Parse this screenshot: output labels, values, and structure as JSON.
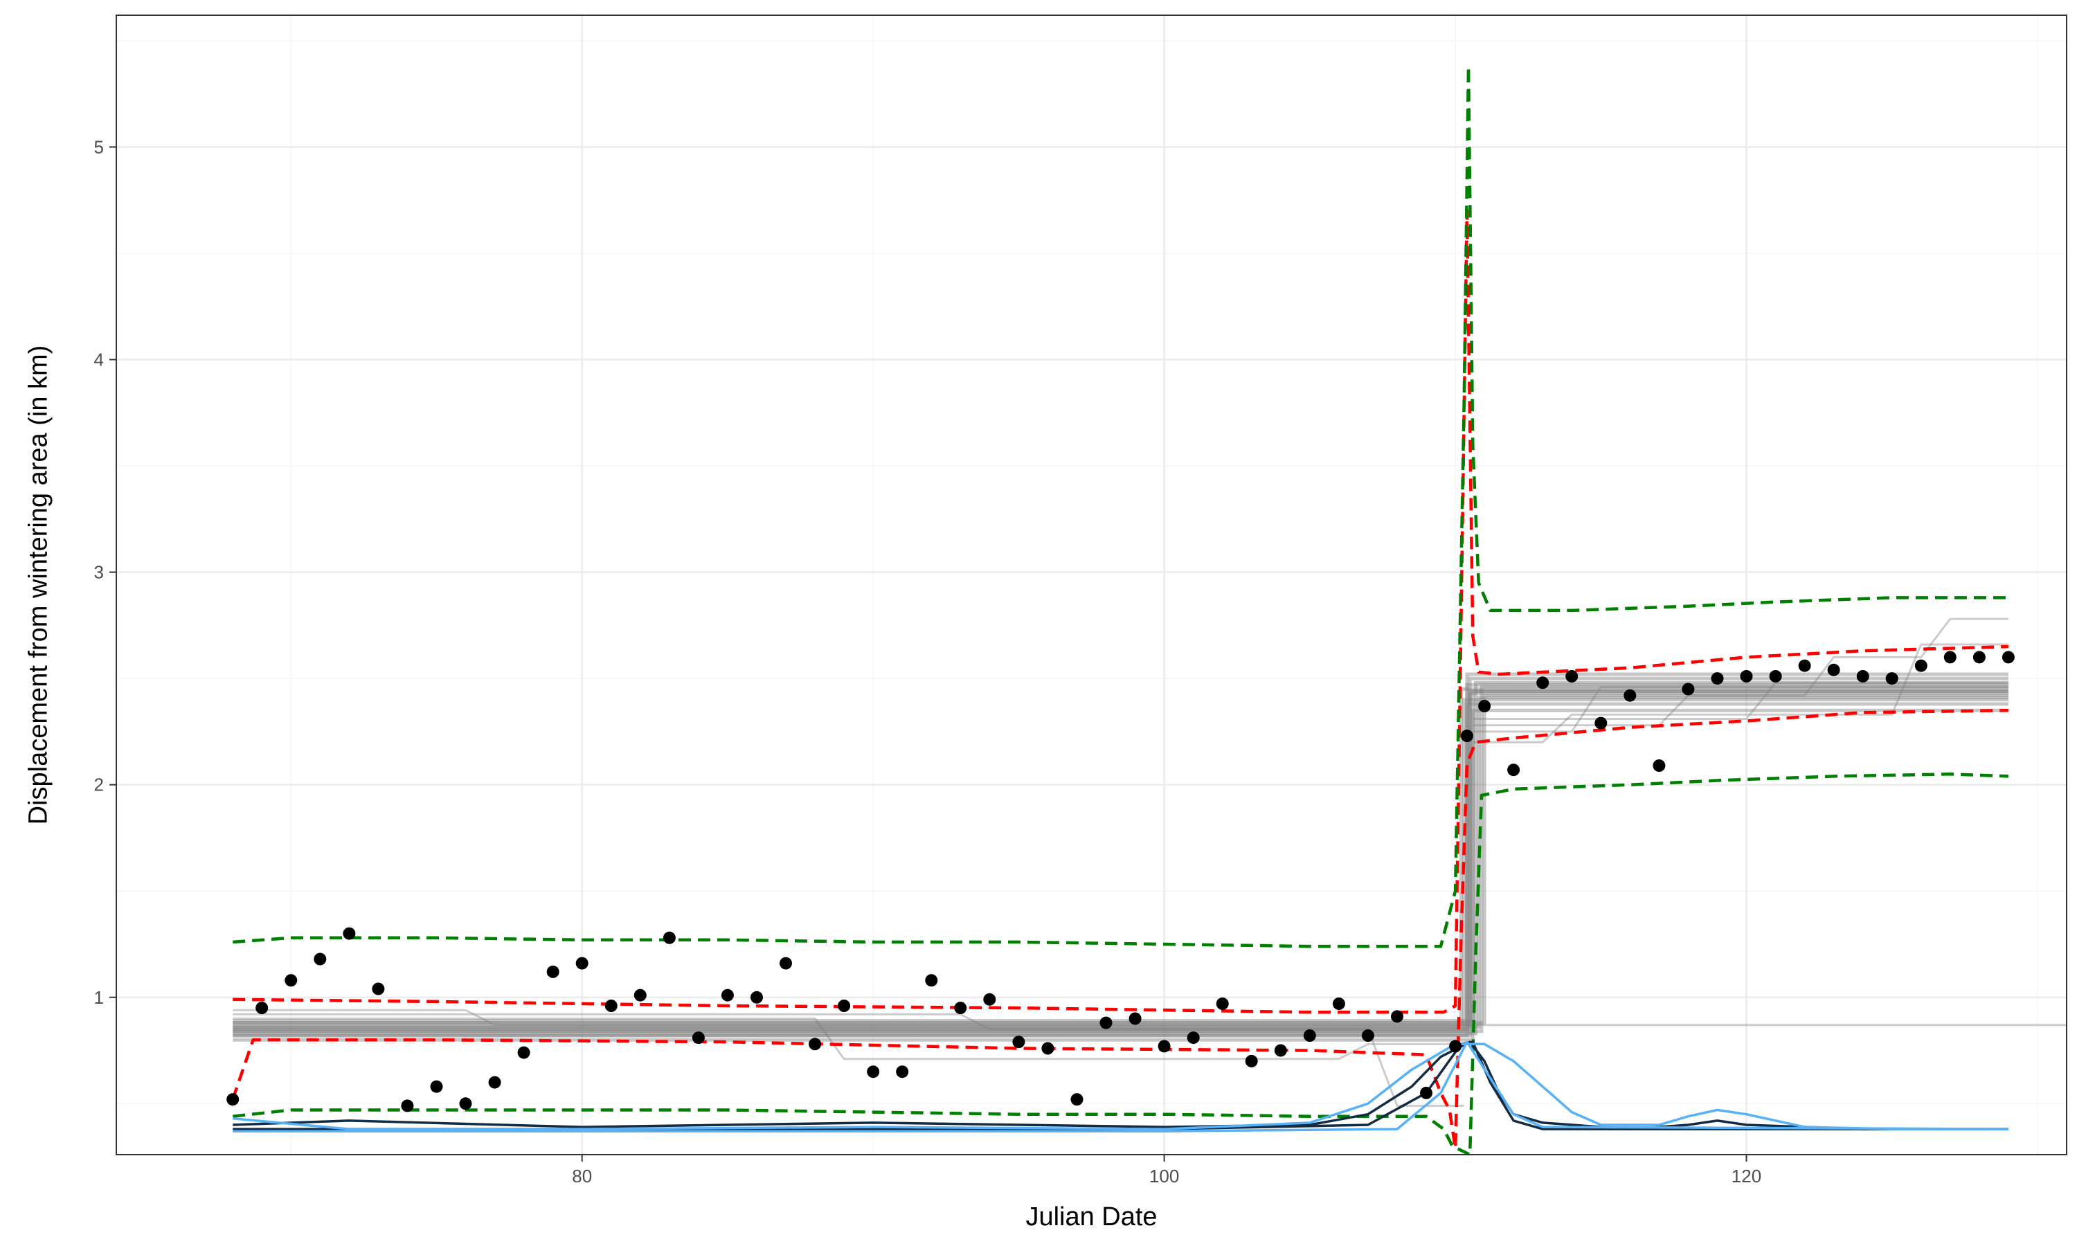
{
  "chart_data": {
    "type": "scatter",
    "title": "",
    "xlabel": "Julian Date",
    "ylabel": "Displacement from wintering area (in km)",
    "xlim": [
      64,
      131
    ],
    "ylim": [
      0.26,
      5.62
    ],
    "x_ticks": [
      80,
      100,
      120
    ],
    "y_ticks": [
      1,
      2,
      3,
      4,
      5
    ],
    "grid": true,
    "legend": "none",
    "colors": {
      "points": "#000000",
      "posterior_draws": "#808080",
      "inner_band": "#ff0000",
      "outer_band": "#008000",
      "density_dark": "#132b43",
      "density_light": "#56b1f7",
      "grid_major": "#ebebeb",
      "grid_minor": "#f5f5f5",
      "panel_border": "#333333"
    },
    "points": {
      "x": [
        68,
        69,
        70,
        71,
        72,
        73,
        74,
        75,
        76,
        77,
        78,
        79,
        80,
        81,
        82,
        83,
        84,
        85,
        86,
        87,
        88,
        89,
        90,
        91,
        92,
        93,
        94,
        95,
        96,
        97,
        98,
        99,
        100,
        101,
        102,
        103,
        104,
        105,
        106,
        107,
        108,
        109,
        110,
        110.4,
        111,
        112,
        113,
        114,
        115,
        116,
        117,
        118,
        119,
        120,
        121,
        122,
        123,
        124,
        125,
        126,
        127,
        128,
        129
      ],
      "y": [
        0.52,
        0.95,
        1.08,
        1.18,
        1.3,
        1.04,
        0.49,
        0.58,
        0.5,
        0.6,
        0.74,
        1.12,
        1.16,
        0.96,
        1.01,
        1.28,
        0.81,
        1.01,
        1.0,
        1.16,
        0.78,
        0.96,
        0.65,
        0.65,
        1.08,
        0.95,
        0.99,
        0.79,
        0.76,
        0.52,
        0.88,
        0.9,
        0.77,
        0.81,
        0.97,
        0.7,
        0.75,
        0.82,
        0.97,
        0.82,
        0.91,
        0.55,
        0.77,
        2.23,
        2.37,
        2.07,
        2.48,
        2.51,
        2.29,
        2.42,
        2.09,
        2.45,
        2.5,
        2.51,
        2.51,
        2.56,
        2.54,
        2.51,
        2.5,
        2.56,
        2.6,
        2.6,
        2.6
      ]
    },
    "step_draws": [
      {
        "pre": 0.86,
        "post": 2.45,
        "change": 110.2
      },
      {
        "pre": 0.84,
        "post": 2.4,
        "change": 110.3
      },
      {
        "pre": 0.88,
        "post": 2.47,
        "change": 110.4
      },
      {
        "pre": 0.82,
        "post": 2.38,
        "change": 110.4
      },
      {
        "pre": 0.85,
        "post": 2.43,
        "change": 110.5
      },
      {
        "pre": 0.87,
        "post": 2.5,
        "change": 110.5
      },
      {
        "pre": 0.8,
        "post": 2.35,
        "change": 110.6
      },
      {
        "pre": 0.89,
        "post": 2.44,
        "change": 110.6
      },
      {
        "pre": 0.83,
        "post": 2.48,
        "change": 110.7
      },
      {
        "pre": 0.86,
        "post": 2.41,
        "change": 110.8
      },
      {
        "pre": 0.84,
        "post": 2.46,
        "change": 110.9
      },
      {
        "pre": 0.88,
        "post": 2.42,
        "change": 111.0
      },
      {
        "pre": 0.85,
        "post": 2.52,
        "change": 110.4
      },
      {
        "pre": 0.82,
        "post": 2.44,
        "change": 110.5
      }
    ],
    "stray_draws": [
      {
        "points": [
          [
            68,
            0.94
          ],
          [
            76,
            0.94
          ],
          [
            77,
            0.87
          ],
          [
            131,
            0.87
          ]
        ]
      },
      {
        "points": [
          [
            68,
            0.9
          ],
          [
            88,
            0.9
          ],
          [
            89,
            0.71
          ],
          [
            106,
            0.71
          ],
          [
            107,
            0.78
          ],
          [
            110.3,
            0.78
          ]
        ]
      },
      {
        "points": [
          [
            68,
            0.92
          ],
          [
            93,
            0.92
          ],
          [
            94,
            0.85
          ],
          [
            107,
            0.85
          ],
          [
            108,
            0.49
          ],
          [
            110.3,
            0.49
          ]
        ]
      },
      {
        "points": [
          [
            110.6,
            2.2
          ],
          [
            113,
            2.2
          ],
          [
            114,
            2.33
          ],
          [
            125,
            2.33
          ],
          [
            126,
            2.66
          ],
          [
            129,
            2.66
          ]
        ]
      },
      {
        "points": [
          [
            110.6,
            2.28
          ],
          [
            117,
            2.28
          ],
          [
            118,
            2.42
          ],
          [
            122,
            2.42
          ],
          [
            123,
            2.6
          ],
          [
            126,
            2.6
          ],
          [
            127,
            2.78
          ],
          [
            129,
            2.78
          ]
        ]
      },
      {
        "points": [
          [
            110.6,
            2.31
          ],
          [
            120,
            2.31
          ],
          [
            121,
            2.48
          ],
          [
            129,
            2.48
          ]
        ]
      },
      {
        "points": [
          [
            110.6,
            2.25
          ],
          [
            114,
            2.25
          ],
          [
            115,
            2.46
          ],
          [
            129,
            2.46
          ]
        ]
      }
    ],
    "red_upper": [
      [
        68,
        0.99
      ],
      [
        75,
        0.98
      ],
      [
        85,
        0.96
      ],
      [
        95,
        0.95
      ],
      [
        105,
        0.93
      ],
      [
        109.6,
        0.93
      ],
      [
        110.0,
        0.96
      ],
      [
        110.2,
        2.8
      ],
      [
        110.4,
        4.7
      ],
      [
        110.6,
        2.7
      ],
      [
        110.8,
        2.53
      ],
      [
        111.5,
        2.52
      ],
      [
        113,
        2.53
      ],
      [
        116,
        2.55
      ],
      [
        120,
        2.6
      ],
      [
        124,
        2.63
      ],
      [
        129,
        2.65
      ]
    ],
    "red_lower": [
      [
        68,
        0.52
      ],
      [
        68.7,
        0.8
      ],
      [
        75,
        0.8
      ],
      [
        85,
        0.79
      ],
      [
        95,
        0.76
      ],
      [
        105,
        0.75
      ],
      [
        109,
        0.73
      ],
      [
        109.5,
        0.55
      ],
      [
        109.8,
        0.47
      ],
      [
        110.0,
        0.29
      ],
      [
        110.2,
        1.3
      ],
      [
        110.4,
        2.1
      ],
      [
        110.7,
        2.2
      ],
      [
        112,
        2.22
      ],
      [
        116,
        2.27
      ],
      [
        120,
        2.3
      ],
      [
        124,
        2.34
      ],
      [
        129,
        2.35
      ]
    ],
    "green_upper": [
      [
        68,
        1.26
      ],
      [
        70,
        1.28
      ],
      [
        75,
        1.28
      ],
      [
        80,
        1.27
      ],
      [
        85,
        1.27
      ],
      [
        90,
        1.26
      ],
      [
        95,
        1.26
      ],
      [
        100,
        1.25
      ],
      [
        105,
        1.24
      ],
      [
        109.5,
        1.24
      ],
      [
        110.0,
        1.5
      ],
      [
        110.3,
        3.8
      ],
      [
        110.45,
        5.38
      ],
      [
        110.6,
        3.6
      ],
      [
        110.8,
        2.95
      ],
      [
        111.2,
        2.82
      ],
      [
        114,
        2.82
      ],
      [
        118,
        2.84
      ],
      [
        121,
        2.86
      ],
      [
        125,
        2.88
      ],
      [
        129,
        2.88
      ]
    ],
    "green_lower": [
      [
        68,
        0.44
      ],
      [
        70,
        0.47
      ],
      [
        75,
        0.47
      ],
      [
        80,
        0.47
      ],
      [
        85,
        0.47
      ],
      [
        90,
        0.46
      ],
      [
        95,
        0.45
      ],
      [
        100,
        0.45
      ],
      [
        105,
        0.44
      ],
      [
        109,
        0.44
      ],
      [
        109.6,
        0.38
      ],
      [
        109.9,
        0.3
      ],
      [
        110.2,
        0.28
      ],
      [
        110.5,
        0.26
      ],
      [
        110.7,
        1.2
      ],
      [
        110.9,
        1.95
      ],
      [
        112,
        1.98
      ],
      [
        116,
        2.0
      ],
      [
        119,
        2.02
      ],
      [
        123,
        2.04
      ],
      [
        127,
        2.05
      ],
      [
        129,
        2.04
      ]
    ],
    "density_dark_1": [
      [
        68,
        0.4
      ],
      [
        72,
        0.42
      ],
      [
        80,
        0.39
      ],
      [
        90,
        0.41
      ],
      [
        100,
        0.39
      ],
      [
        105,
        0.4
      ],
      [
        107,
        0.45
      ],
      [
        108.5,
        0.58
      ],
      [
        109.5,
        0.72
      ],
      [
        110.5,
        0.79
      ],
      [
        111,
        0.7
      ],
      [
        111.5,
        0.55
      ],
      [
        112,
        0.45
      ],
      [
        113,
        0.41
      ],
      [
        116,
        0.38
      ],
      [
        118,
        0.4
      ],
      [
        119,
        0.42
      ],
      [
        120,
        0.4
      ],
      [
        124,
        0.38
      ],
      [
        129,
        0.38
      ]
    ],
    "density_dark_2": [
      [
        68,
        0.38
      ],
      [
        80,
        0.38
      ],
      [
        100,
        0.38
      ],
      [
        107,
        0.4
      ],
      [
        109,
        0.55
      ],
      [
        110.2,
        0.78
      ],
      [
        110.6,
        0.79
      ],
      [
        111.2,
        0.6
      ],
      [
        112,
        0.42
      ],
      [
        113,
        0.38
      ],
      [
        129,
        0.38
      ]
    ],
    "density_light_1": [
      [
        68,
        0.43
      ],
      [
        72,
        0.38
      ],
      [
        80,
        0.38
      ],
      [
        90,
        0.39
      ],
      [
        100,
        0.38
      ],
      [
        105,
        0.41
      ],
      [
        107,
        0.5
      ],
      [
        108.5,
        0.66
      ],
      [
        110,
        0.78
      ],
      [
        111,
        0.78
      ],
      [
        112,
        0.7
      ],
      [
        113,
        0.58
      ],
      [
        114,
        0.46
      ],
      [
        115,
        0.4
      ],
      [
        117,
        0.4
      ],
      [
        118,
        0.44
      ],
      [
        119,
        0.47
      ],
      [
        120,
        0.45
      ],
      [
        122,
        0.39
      ],
      [
        125,
        0.38
      ],
      [
        129,
        0.38
      ]
    ],
    "density_light_2": [
      [
        68,
        0.37
      ],
      [
        100,
        0.37
      ],
      [
        108,
        0.38
      ],
      [
        109.5,
        0.55
      ],
      [
        110.4,
        0.79
      ],
      [
        111.2,
        0.62
      ],
      [
        112,
        0.45
      ],
      [
        113,
        0.39
      ],
      [
        129,
        0.38
      ]
    ]
  }
}
